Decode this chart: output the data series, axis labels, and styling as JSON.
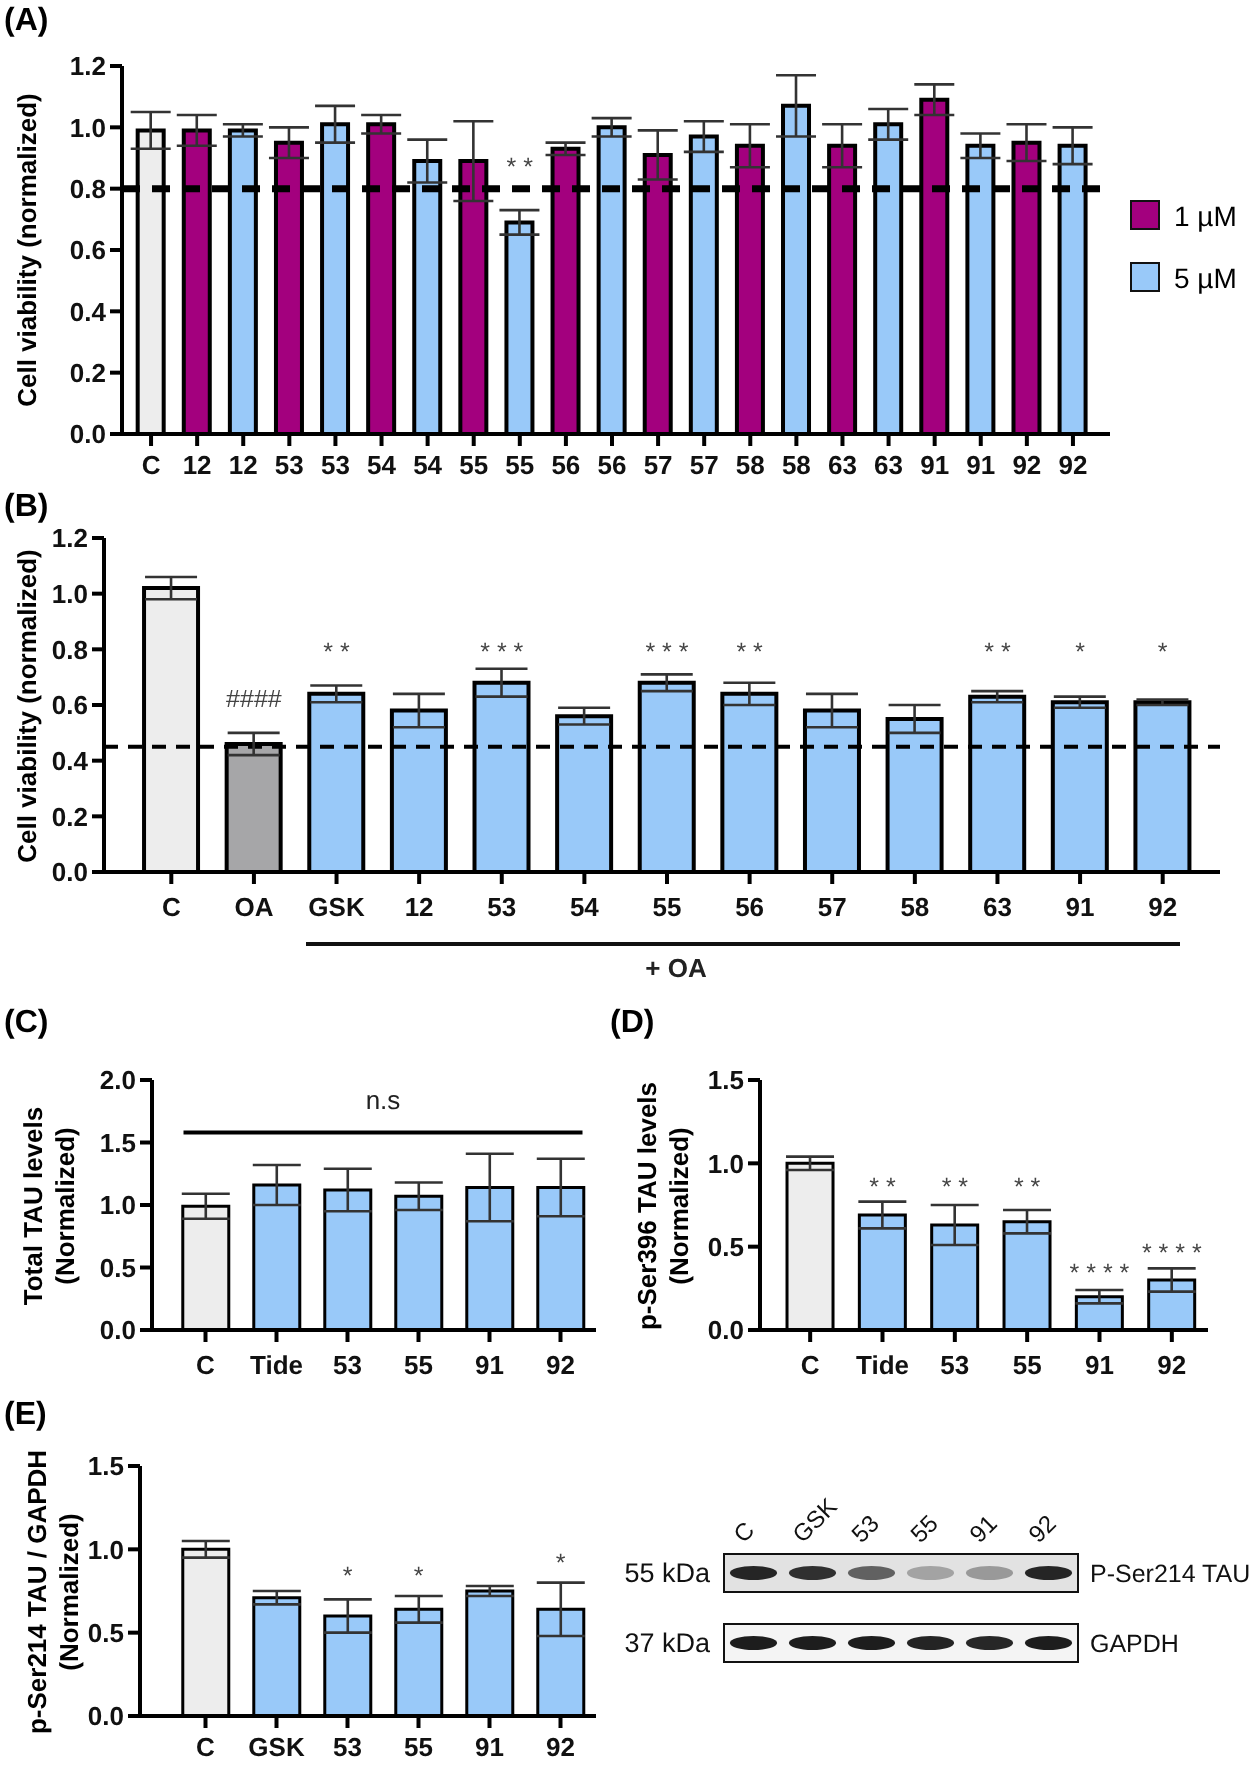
{
  "chart_data": [
    {
      "type": "bar",
      "title": "(A)",
      "ylabel": "Cell viability (normalized)",
      "stacked": true,
      "legend": "right",
      "categories": [
        "C",
        "12",
        "12",
        "53",
        "53",
        "54",
        "54",
        "55",
        "55",
        "56",
        "56",
        "57",
        "57",
        "58",
        "58",
        "63",
        "63",
        "91",
        "91",
        "92",
        "92"
      ],
      "series": [
        {
          "color": "#ededed",
          "values": [
            0.99,
            null,
            null,
            null,
            null,
            null,
            null,
            null,
            null,
            null,
            null,
            null,
            null,
            null,
            null,
            null,
            null,
            null,
            null,
            null,
            null
          ],
          "errors": [
            0.06,
            null,
            null,
            null,
            null,
            null,
            null,
            null,
            null,
            null,
            null,
            null,
            null,
            null,
            null,
            null,
            null,
            null,
            null,
            null,
            null
          ]
        },
        {
          "name": "1 µM",
          "color": "#a3007e",
          "values": [
            null,
            0.99,
            null,
            0.95,
            null,
            1.01,
            null,
            0.89,
            null,
            0.93,
            null,
            0.91,
            null,
            0.94,
            null,
            0.94,
            null,
            1.09,
            null,
            0.95,
            null
          ],
          "errors": [
            null,
            0.05,
            null,
            0.05,
            null,
            0.03,
            null,
            0.13,
            null,
            0.02,
            null,
            0.08,
            null,
            0.07,
            null,
            0.07,
            null,
            0.05,
            null,
            0.06,
            null
          ]
        },
        {
          "name": "5 µM",
          "color": "#99c9f9",
          "values": [
            null,
            null,
            0.99,
            null,
            1.01,
            null,
            0.89,
            null,
            0.69,
            null,
            1.0,
            null,
            0.97,
            null,
            1.07,
            null,
            1.01,
            null,
            0.94,
            null,
            0.94
          ],
          "errors": [
            null,
            null,
            0.02,
            null,
            0.06,
            null,
            0.07,
            null,
            0.04,
            null,
            0.03,
            null,
            0.05,
            null,
            0.1,
            null,
            0.05,
            null,
            0.04,
            null,
            0.06
          ]
        }
      ],
      "ylim": [
        0,
        1.2
      ],
      "yticks": [
        {
          "value": 0,
          "label": "0.0"
        },
        0.2,
        0.4,
        0.6,
        0.8,
        {
          "value": 1,
          "label": "1.0"
        },
        1.2
      ],
      "ref_lines": [
        {
          "axis": "y",
          "value": 0.8,
          "line_style": "dashed",
          "color": "#000000"
        }
      ],
      "annotations": [
        "* *"
      ]
    },
    {
      "type": "bar",
      "title": "(B)",
      "ylabel": "Cell viability (normalized)",
      "categories": [
        "C",
        "OA",
        "GSK",
        "12",
        "53",
        "54",
        "55",
        "56",
        "57",
        "58",
        "63",
        "91",
        "92"
      ],
      "values": [
        1.02,
        0.46,
        0.64,
        0.58,
        0.68,
        0.56,
        0.68,
        0.64,
        0.58,
        0.55,
        0.63,
        0.61,
        0.61
      ],
      "errors": [
        0.04,
        0.04,
        0.03,
        0.06,
        0.05,
        0.03,
        0.03,
        0.04,
        0.06,
        0.05,
        0.02,
        0.02,
        0.01
      ],
      "colors": [
        "#ededed",
        "#a6a6a8",
        "#99c9f9",
        "#99c9f9",
        "#99c9f9",
        "#99c9f9",
        "#99c9f9",
        "#99c9f9",
        "#99c9f9",
        "#99c9f9",
        "#99c9f9",
        "#99c9f9",
        "#99c9f9"
      ],
      "ylim": [
        0,
        1.2
      ],
      "yticks": [
        {
          "value": 0,
          "label": "0.0"
        },
        0.2,
        0.4,
        0.6,
        0.8,
        {
          "value": 1,
          "label": "1.0"
        },
        1.2
      ],
      "ref_lines": [
        {
          "axis": "y",
          "value": 0.45,
          "line_style": "dashed",
          "color": "#000000"
        }
      ],
      "annotations": [
        "####",
        "* *",
        "* * *",
        "* * *",
        "* *",
        "* *",
        "*",
        "*",
        "+ OA"
      ]
    },
    {
      "type": "bar",
      "title": "(C)",
      "ylabel": "Total TAU levels\n(Normalized)",
      "categories": [
        "C",
        "Tide",
        "53",
        "55",
        "91",
        "92"
      ],
      "values": [
        0.99,
        1.16,
        1.12,
        1.07,
        1.14,
        1.14
      ],
      "errors": [
        0.1,
        0.16,
        0.17,
        0.11,
        0.27,
        0.23
      ],
      "colors": [
        "#ededed",
        "#99c9f9",
        "#99c9f9",
        "#99c9f9",
        "#99c9f9",
        "#99c9f9"
      ],
      "ylim": [
        0,
        2
      ],
      "yticks": [
        {
          "value": 0,
          "label": "0.0"
        },
        0.5,
        {
          "value": 1,
          "label": "1.0"
        },
        1.5,
        {
          "value": 2,
          "label": "2.0"
        }
      ],
      "ref_lines": [
        {
          "axis": "y",
          "value": 1.58,
          "label": "n.s",
          "color": "#000000"
        }
      ]
    },
    {
      "type": "bar",
      "title": "(D)",
      "ylabel": "p-Ser396 TAU levels\n(Normalized)",
      "categories": [
        "C",
        "Tide",
        "53",
        "55",
        "91",
        "92"
      ],
      "values": [
        1.0,
        0.69,
        0.63,
        0.65,
        0.2,
        0.3
      ],
      "errors": [
        0.04,
        0.08,
        0.12,
        0.07,
        0.04,
        0.07
      ],
      "colors": [
        "#ededed",
        "#99c9f9",
        "#99c9f9",
        "#99c9f9",
        "#99c9f9",
        "#99c9f9"
      ],
      "ylim": [
        0,
        1.5
      ],
      "yticks": [
        {
          "value": 0,
          "label": "0.0"
        },
        0.5,
        {
          "value": 1,
          "label": "1.0"
        },
        1.5
      ],
      "annotations": [
        "* *",
        "* *",
        "* *",
        "* * * *",
        "* * * *"
      ]
    },
    {
      "type": "bar",
      "title": "(E)",
      "ylabel": "p-Ser214 TAU / GAPDH\n(Normalized)",
      "categories": [
        "C",
        "GSK",
        "53",
        "55",
        "91",
        "92"
      ],
      "values": [
        1.0,
        0.71,
        0.6,
        0.64,
        0.75,
        0.64
      ],
      "errors": [
        0.05,
        0.04,
        0.1,
        0.08,
        0.03,
        0.16
      ],
      "colors": [
        "#ededed",
        "#99c9f9",
        "#99c9f9",
        "#99c9f9",
        "#99c9f9",
        "#99c9f9"
      ],
      "ylim": [
        0,
        1.5
      ],
      "yticks": [
        {
          "value": 0,
          "label": "0.0"
        },
        0.5,
        {
          "value": 1,
          "label": "1.0"
        },
        1.5
      ],
      "annotations": [
        "*",
        "*",
        "*"
      ]
    },
    {
      "type": "other",
      "categories": [
        "C",
        "GSK",
        "53",
        "55",
        "91",
        "92"
      ],
      "y_categories": [
        "55 kDa",
        "37 kDa"
      ],
      "y2_categories": [
        "P-Ser214 TAU",
        "GAPDH"
      ]
    }
  ]
}
